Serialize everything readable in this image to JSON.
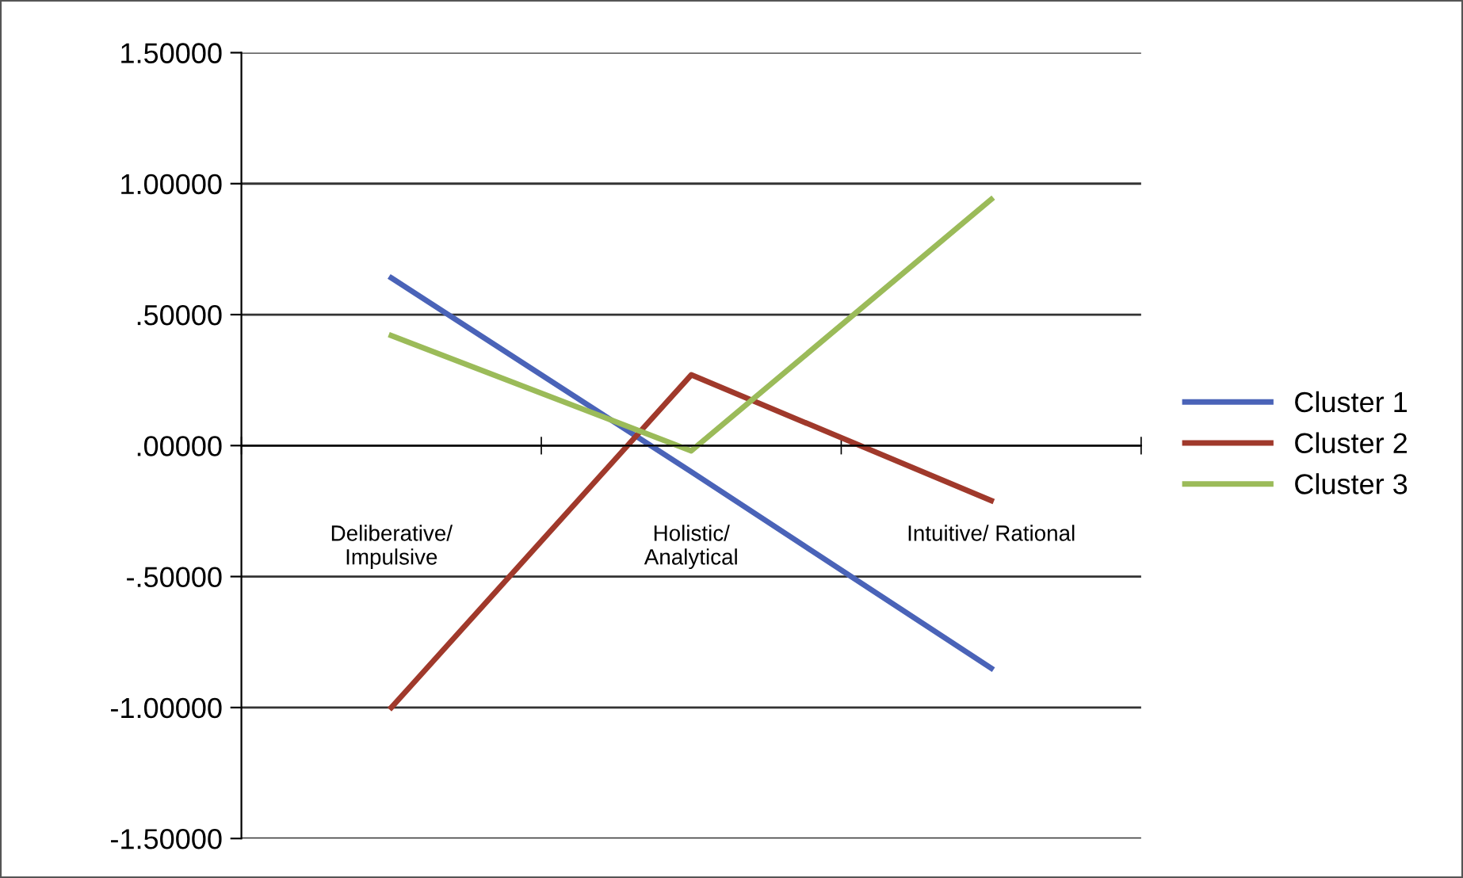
{
  "chart_data": {
    "type": "line",
    "categories": [
      "Deliberative/\nImpulsive",
      "Holistic/\nAnalytical",
      "Intuitive/ Rational"
    ],
    "series": [
      {
        "name": "Cluster 1",
        "color": "#4a63b8",
        "values": [
          0.64,
          -0.1,
          -0.85
        ]
      },
      {
        "name": "Cluster 2",
        "color": "#a0392b",
        "values": [
          -1.0,
          0.27,
          -0.21
        ]
      },
      {
        "name": "Cluster 3",
        "color": "#9bbb59",
        "values": [
          0.42,
          -0.02,
          0.94
        ]
      }
    ],
    "ylim": [
      -1.5,
      1.5
    ],
    "yticks": [
      {
        "value": -1.5,
        "label": "-1.50000"
      },
      {
        "value": -1.0,
        "label": "-1.00000"
      },
      {
        "value": -0.5,
        "label": "-.50000"
      },
      {
        "value": 0,
        "label": ".00000"
      },
      {
        "value": 0.5,
        "label": ".50000"
      },
      {
        "value": 1.0,
        "label": "1.00000"
      },
      {
        "value": 1.5,
        "label": "1.50000"
      }
    ],
    "grid": "y",
    "legend": "right",
    "marker": "none",
    "line_style": "solid"
  }
}
